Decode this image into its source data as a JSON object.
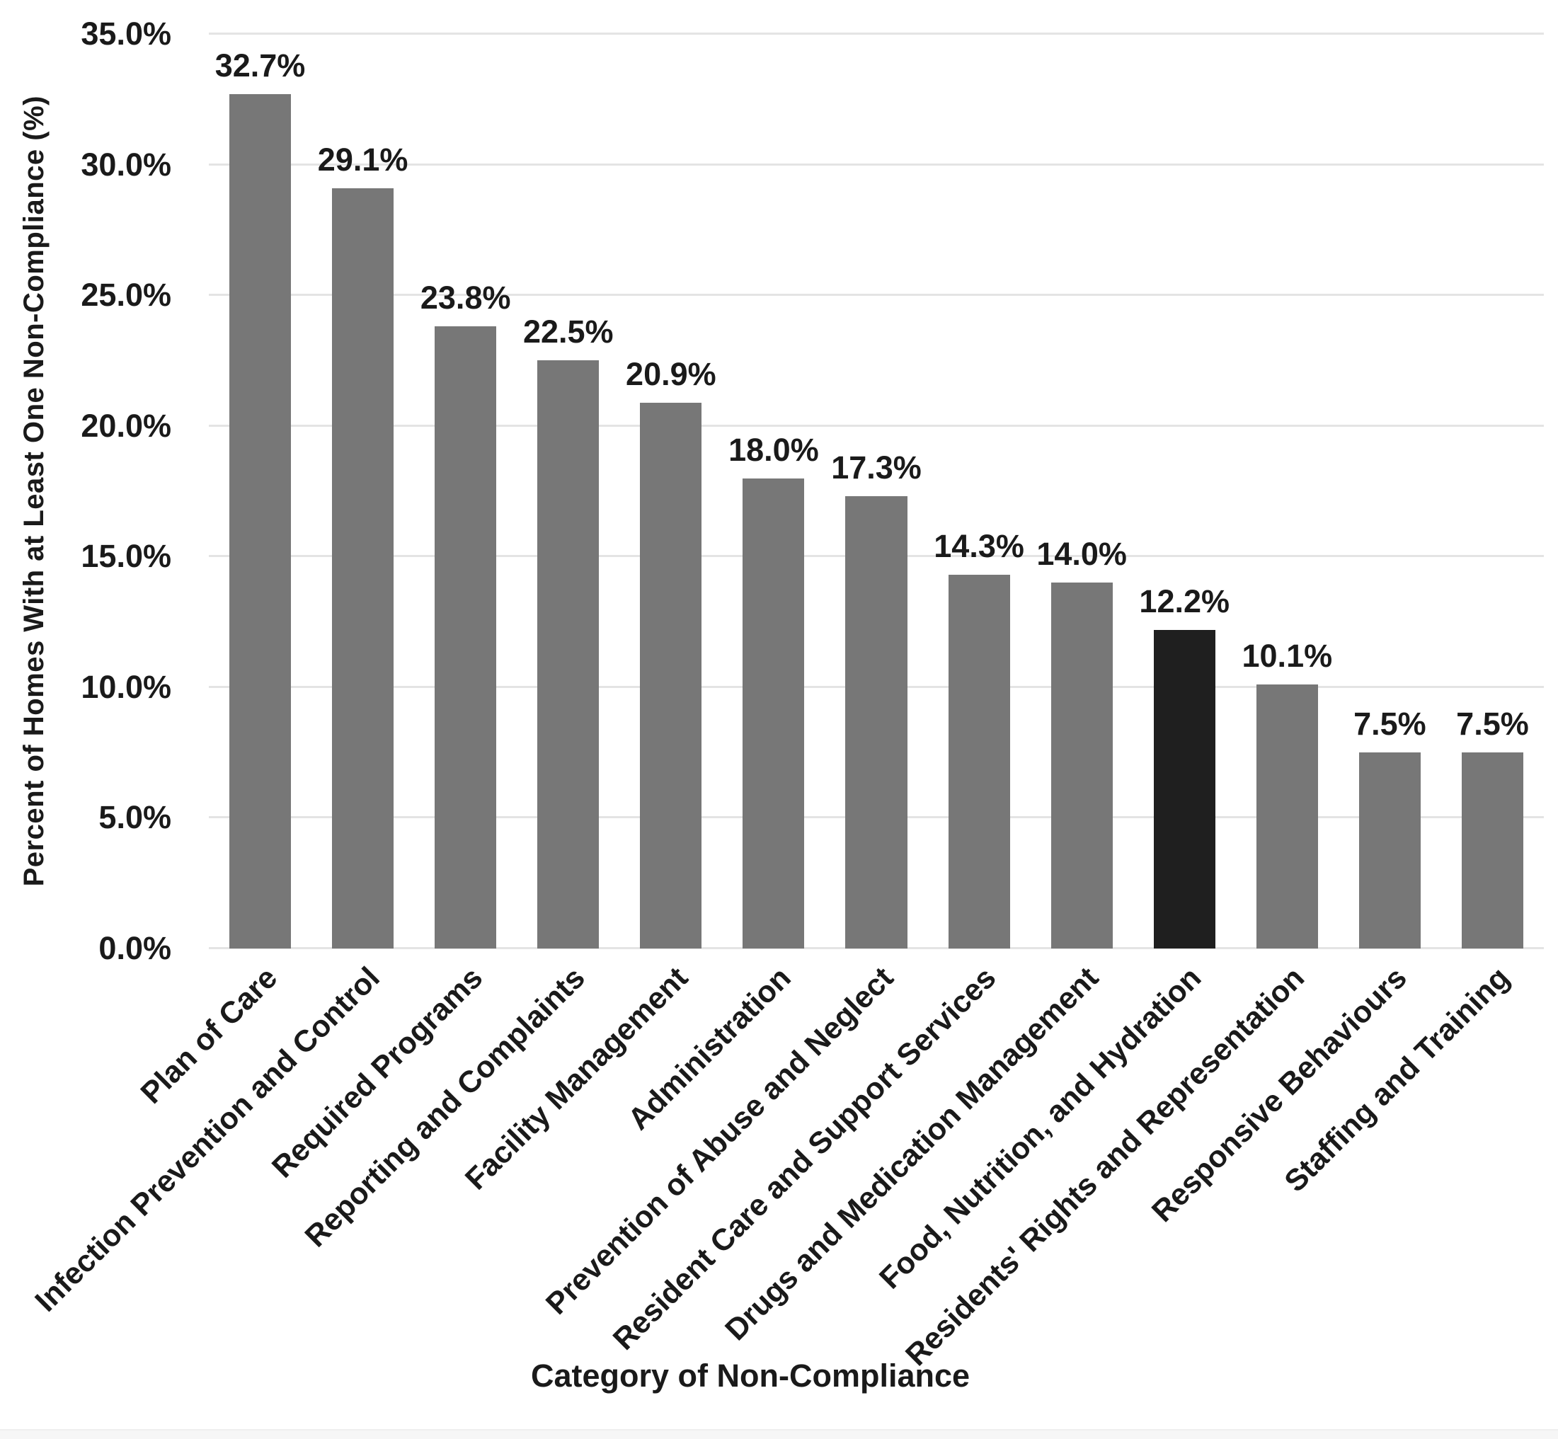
{
  "chart_data": {
    "type": "bar",
    "title": "",
    "xlabel": "Category of Non-Compliance",
    "ylabel": "Percent of Homes With at Least One Non-Compliance (%)",
    "ylim": [
      0,
      35
    ],
    "grid": true,
    "legend": false,
    "y_ticks": [
      0,
      5,
      10,
      15,
      20,
      25,
      30,
      35
    ],
    "y_tick_labels": [
      "0.0%",
      "5.0%",
      "10.0%",
      "15.0%",
      "20.0%",
      "25.0%",
      "30.0%",
      "35.0%"
    ],
    "categories": [
      "Plan of Care",
      "Infection Prevention and Control",
      "Required Programs",
      "Reporting and Complaints",
      "Facility Management",
      "Administration",
      "Prevention of Abuse and Neglect",
      "Resident Care and Support Services",
      "Drugs and Medication Management",
      "Food, Nutrition, and Hydration",
      "Residents' Rights and Representation",
      "Responsive Behaviours",
      "Staffing and Training"
    ],
    "values": [
      32.7,
      29.1,
      23.8,
      22.5,
      20.9,
      18.0,
      17.3,
      14.3,
      14.0,
      12.2,
      10.1,
      7.5,
      7.5
    ],
    "data_labels": [
      "32.7%",
      "29.1%",
      "23.8%",
      "22.5%",
      "20.9%",
      "18.0%",
      "17.3%",
      "14.3%",
      "14.0%",
      "12.2%",
      "10.1%",
      "7.5%",
      "7.5%"
    ],
    "bar_color": "#777777",
    "highlight_color": "#1f1f1f",
    "highlight_index": 9,
    "gridline_color": "#e4e4e4",
    "text_color": "#1a1a1a"
  }
}
